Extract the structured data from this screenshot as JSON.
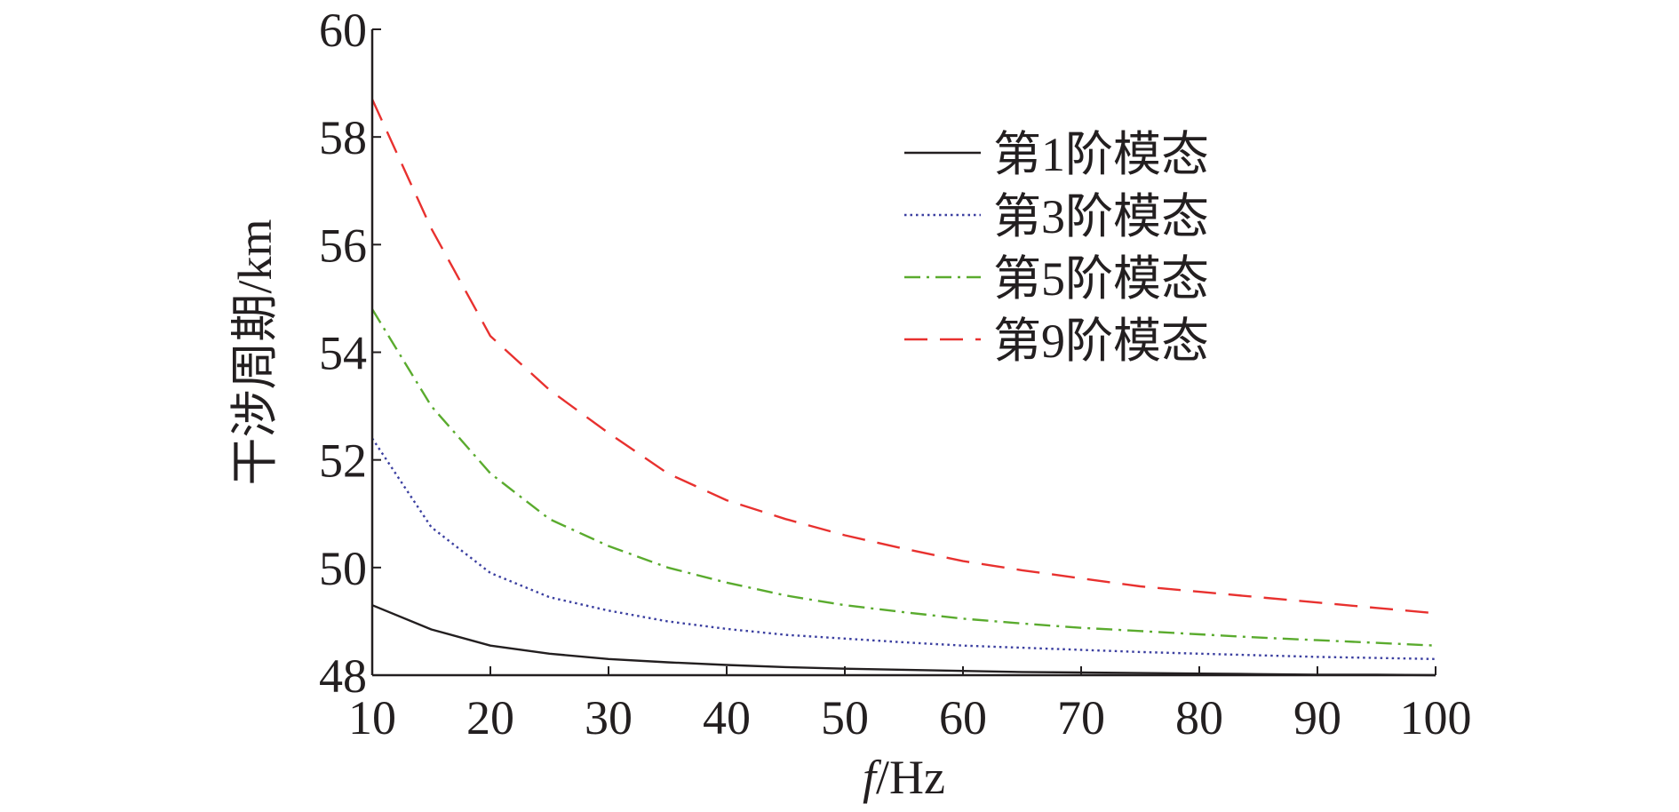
{
  "chart_data": {
    "type": "line",
    "title": "",
    "xlabel_italic": "f",
    "xlabel_rest": "/Hz",
    "ylabel": "干涉周期/km",
    "xlim": [
      10,
      100
    ],
    "ylim": [
      48,
      60
    ],
    "xticks": [
      10,
      20,
      30,
      40,
      50,
      60,
      70,
      80,
      90,
      100
    ],
    "yticks": [
      48,
      50,
      52,
      54,
      56,
      58,
      60
    ],
    "grid": false,
    "legend_position": "top-right",
    "x": [
      10,
      15,
      20,
      25,
      30,
      35,
      40,
      45,
      50,
      55,
      60,
      65,
      70,
      75,
      80,
      85,
      90,
      95,
      100
    ],
    "series": [
      {
        "name": "第1阶模态",
        "color": "#231f20",
        "dash": "solid",
        "values": [
          49.3,
          48.85,
          48.55,
          48.4,
          48.3,
          48.24,
          48.19,
          48.15,
          48.12,
          48.1,
          48.08,
          48.06,
          48.05,
          48.04,
          48.03,
          48.02,
          48.01,
          48.01,
          48.0
        ]
      },
      {
        "name": "第3阶模态",
        "color": "#3b3fa0",
        "dash": "dotted",
        "values": [
          52.4,
          50.75,
          49.9,
          49.45,
          49.2,
          49.0,
          48.86,
          48.75,
          48.68,
          48.61,
          48.55,
          48.51,
          48.47,
          48.43,
          48.4,
          48.37,
          48.34,
          48.32,
          48.3
        ]
      },
      {
        "name": "第5阶模态",
        "color": "#5aab2e",
        "dash": "dashdot",
        "values": [
          54.8,
          53.0,
          51.75,
          50.9,
          50.4,
          50.0,
          49.72,
          49.48,
          49.3,
          49.17,
          49.05,
          48.96,
          48.88,
          48.82,
          48.76,
          48.7,
          48.65,
          48.6,
          48.55
        ]
      },
      {
        "name": "第9阶模态",
        "color": "#e8312f",
        "dash": "dashed",
        "values": [
          58.7,
          56.3,
          54.3,
          53.3,
          52.5,
          51.75,
          51.25,
          50.9,
          50.6,
          50.35,
          50.12,
          49.95,
          49.8,
          49.65,
          49.55,
          49.45,
          49.35,
          49.25,
          49.15
        ]
      }
    ]
  }
}
